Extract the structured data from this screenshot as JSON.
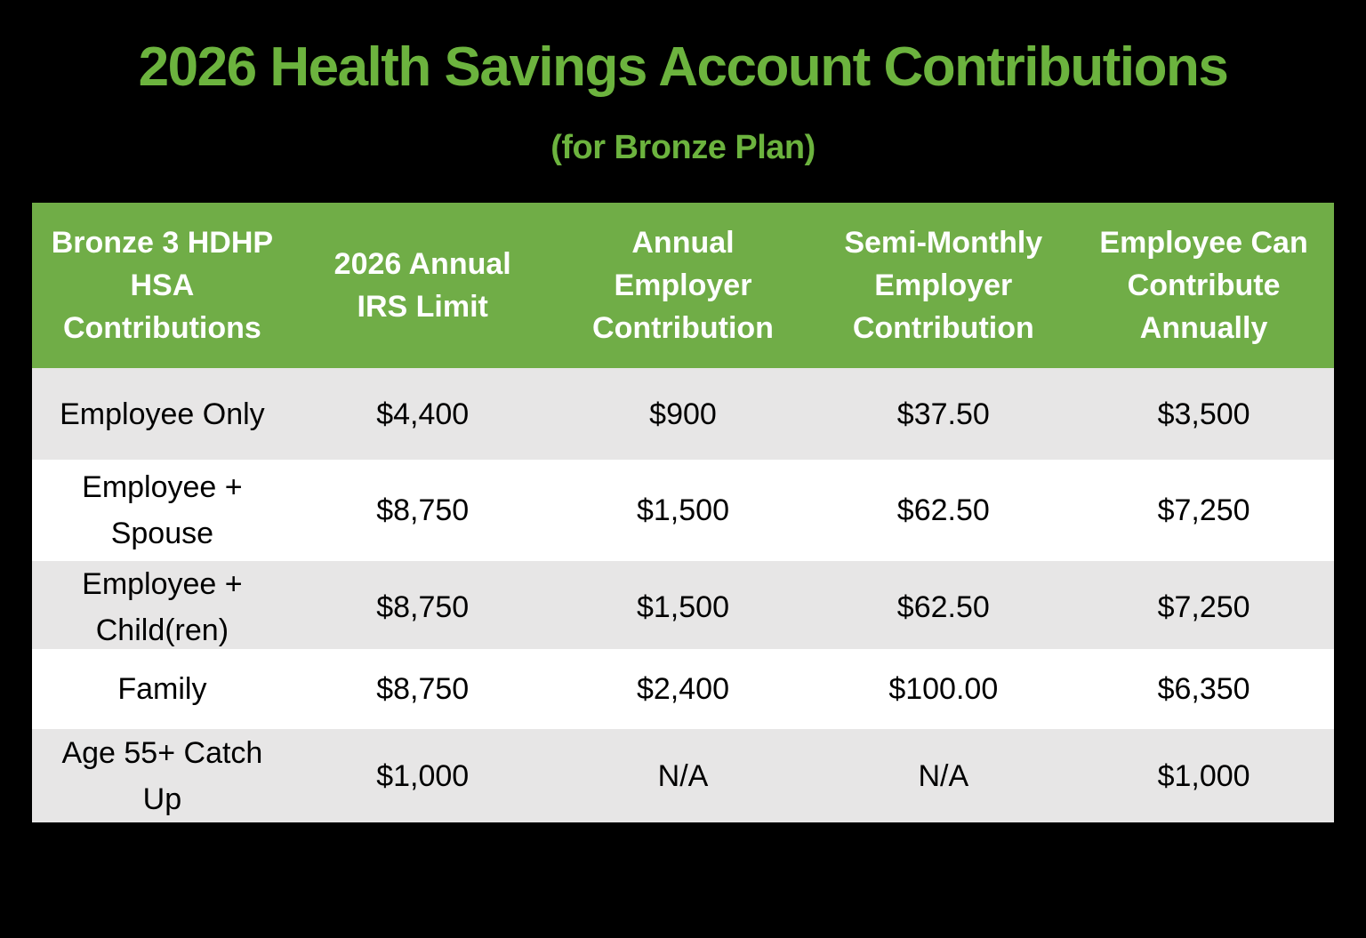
{
  "page": {
    "background_color": "#000000",
    "accent_green": "#70AD47",
    "title_green": "#6CB33E",
    "band_gray": "#E7E6E6"
  },
  "header": {
    "title": "2026 Health Savings Account Contributions",
    "subtitle": "(for Bronze Plan)"
  },
  "table": {
    "columns": [
      "Bronze 3 HDHP\nHSA\nContributions",
      "2026 Annual\nIRS Limit",
      "Annual\nEmployer\nContribution",
      "Semi-Monthly\nEmployer\nContribution",
      "Employee Can\nContribute\nAnnually"
    ],
    "rows": [
      {
        "label": "Employee Only",
        "values": [
          "$4,400",
          "$900",
          "$37.50",
          "$3,500"
        ]
      },
      {
        "label": "Employee +\nSpouse",
        "values": [
          "$8,750",
          "$1,500",
          "$62.50",
          "$7,250"
        ]
      },
      {
        "label": "Employee +\nChild(ren)",
        "values": [
          "$8,750",
          "$1,500",
          "$62.50",
          "$7,250"
        ]
      },
      {
        "label": "Family",
        "values": [
          "$8,750",
          "$2,400",
          "$100.00",
          "$6,350"
        ]
      },
      {
        "label": "Age 55+ Catch Up",
        "values": [
          "$1,000",
          "N/A",
          "N/A",
          "$1,000"
        ]
      }
    ]
  }
}
